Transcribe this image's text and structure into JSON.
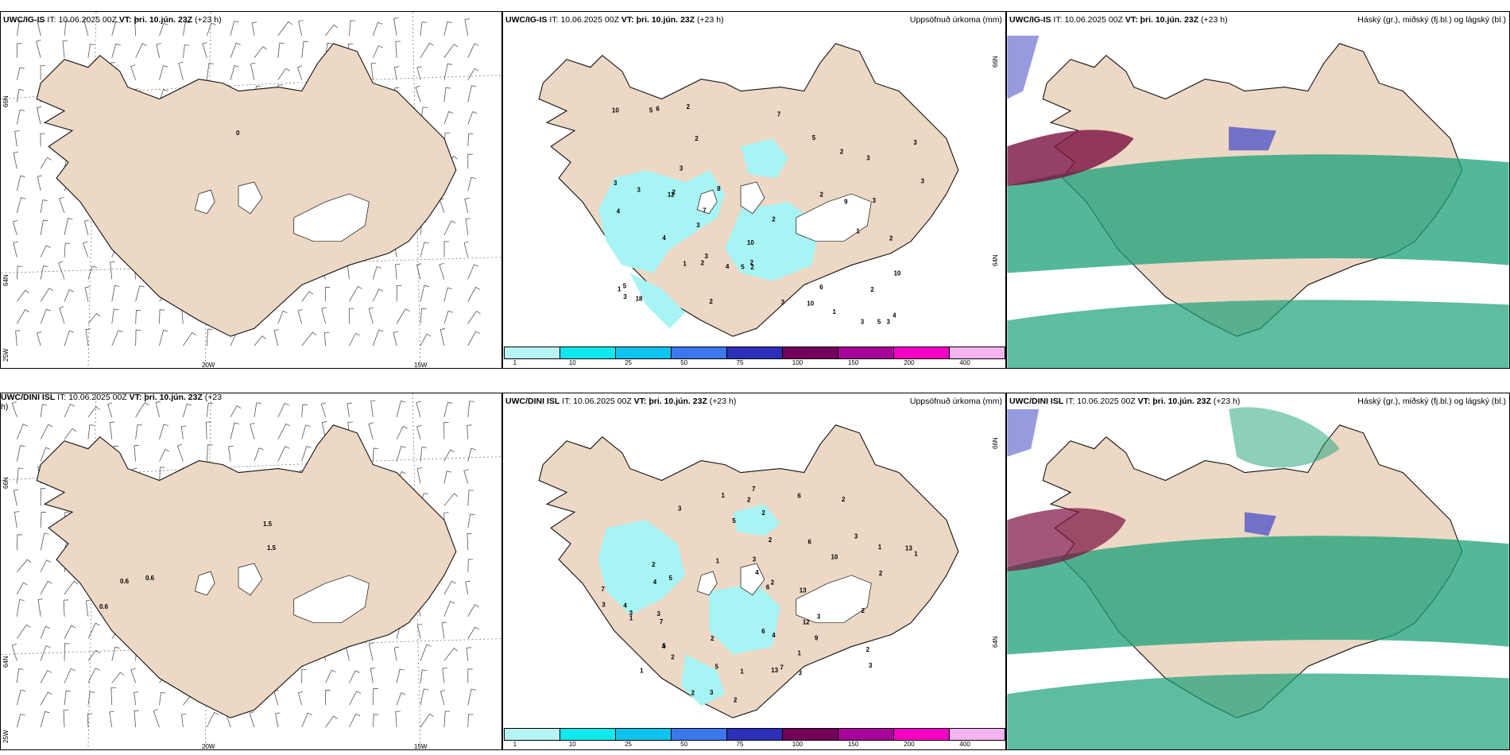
{
  "top": {
    "left": {
      "model": "UWC/IG-IS",
      "it_label": "IT:",
      "it_value": "10.06.2025 00Z",
      "vt_label": "VT:",
      "vt_value": "þri. 10.jún. 23Z",
      "lead": "(+23 h)",
      "lat_labels": [
        "66N",
        "64N"
      ],
      "lon_labels": [
        "25W",
        "20W",
        "15W"
      ],
      "value_labels": [
        "0"
      ]
    },
    "middle": {
      "model": "UWC/IG-IS",
      "it_label": "IT:",
      "it_value": "10.06.2025 00Z",
      "vt_label": "VT:",
      "vt_value": "þri. 10.jún. 23Z",
      "lead": "(+23 h)",
      "right_title": "Uppsöfnuð úrkoma (mm)",
      "lat_labels": [
        "66N",
        "64N"
      ],
      "precip_labels": [
        "10",
        "12",
        "5",
        "1",
        "3",
        "2",
        "5",
        "3",
        "2",
        "9",
        "3",
        "7",
        "10",
        "3",
        "7",
        "6",
        "2",
        "3",
        "3",
        "8",
        "5",
        "2",
        "10",
        "1",
        "2",
        "2",
        "3",
        "5",
        "3",
        "1",
        "3",
        "4",
        "18",
        "10",
        "2",
        "3",
        "3",
        "6",
        "4",
        "2",
        "4",
        "4",
        "2",
        "1",
        "2",
        "3",
        "2",
        "3",
        "2",
        "5"
      ]
    },
    "right": {
      "model": "UWC/IG-IS",
      "it_label": "IT:",
      "it_value": "10.06.2025 00Z",
      "vt_label": "VT:",
      "vt_value": "þri. 10.jún. 23Z",
      "lead": "(+23 h)",
      "right_title": "Háský (gr.), miðský (fj.bl.) og lágský (bl.)"
    }
  },
  "bottom": {
    "left": {
      "model": "UWC/DINI ISL",
      "it_label": "IT:",
      "it_value": "10.06.2025 00Z",
      "vt_label": "VT:",
      "vt_value": "þri. 10.jún. 23Z",
      "lead": "(+23",
      "lead_wrap": "h)",
      "lat_labels": [
        "66N",
        "64N"
      ],
      "lon_labels": [
        "25W",
        "20W",
        "15W"
      ],
      "value_labels": [
        "0.6",
        "0.6",
        "1.5",
        "1.5",
        "0.6"
      ]
    },
    "middle": {
      "model": "UWC/DINI ISL",
      "it_label": "IT:",
      "it_value": "10.06.2025 00Z",
      "vt_label": "VT:",
      "vt_value": "þri. 10.jún. 23Z",
      "lead": "(+23 h)",
      "right_title": "Uppsöfnuð úrkoma (mm)",
      "lat_labels": [
        "66N",
        "64N"
      ],
      "precip_labels": [
        "1",
        "2",
        "3",
        "3",
        "4",
        "5",
        "7",
        "5",
        "1",
        "10",
        "4",
        "7",
        "9",
        "6",
        "2",
        "1",
        "3",
        "7",
        "4",
        "3",
        "3",
        "2",
        "5",
        "2",
        "4",
        "5",
        "3",
        "6",
        "2",
        "3",
        "2",
        "2",
        "7",
        "6",
        "2",
        "1",
        "13",
        "13",
        "6",
        "2",
        "1",
        "2",
        "1",
        "3",
        "3",
        "4",
        "12",
        "13",
        "2",
        "1",
        "1",
        "2",
        "3",
        "2"
      ]
    },
    "right": {
      "model": "UWC/DINI ISL",
      "it_label": "IT:",
      "it_value": "10.06.2025 00Z",
      "vt_label": "VT:",
      "vt_value": "þri. 10.jún. 23Z",
      "lead": "(+23 h)",
      "right_title": "Háský (gr.), miðský (fj.bl.) og lágský (bl.)"
    }
  },
  "colorbar": {
    "labels": [
      "1",
      "10",
      "25",
      "50",
      "75",
      "100",
      "150",
      "200",
      "400"
    ],
    "colors": [
      "#b6f4f4",
      "#10e8ee",
      "#0ec4ee",
      "#3b78f0",
      "#2c30b8",
      "#74005c",
      "#a8009a",
      "#f400c4",
      "#f4b4f0"
    ]
  },
  "colors": {
    "land": "#ecd8c4",
    "land_light": "#f6e8dc",
    "coast": "#111111",
    "precip": "#a8f4f4",
    "high_cloud": "#1aa078",
    "mid_cloud": "#5258c8",
    "low_cloud": "#7a1040"
  }
}
